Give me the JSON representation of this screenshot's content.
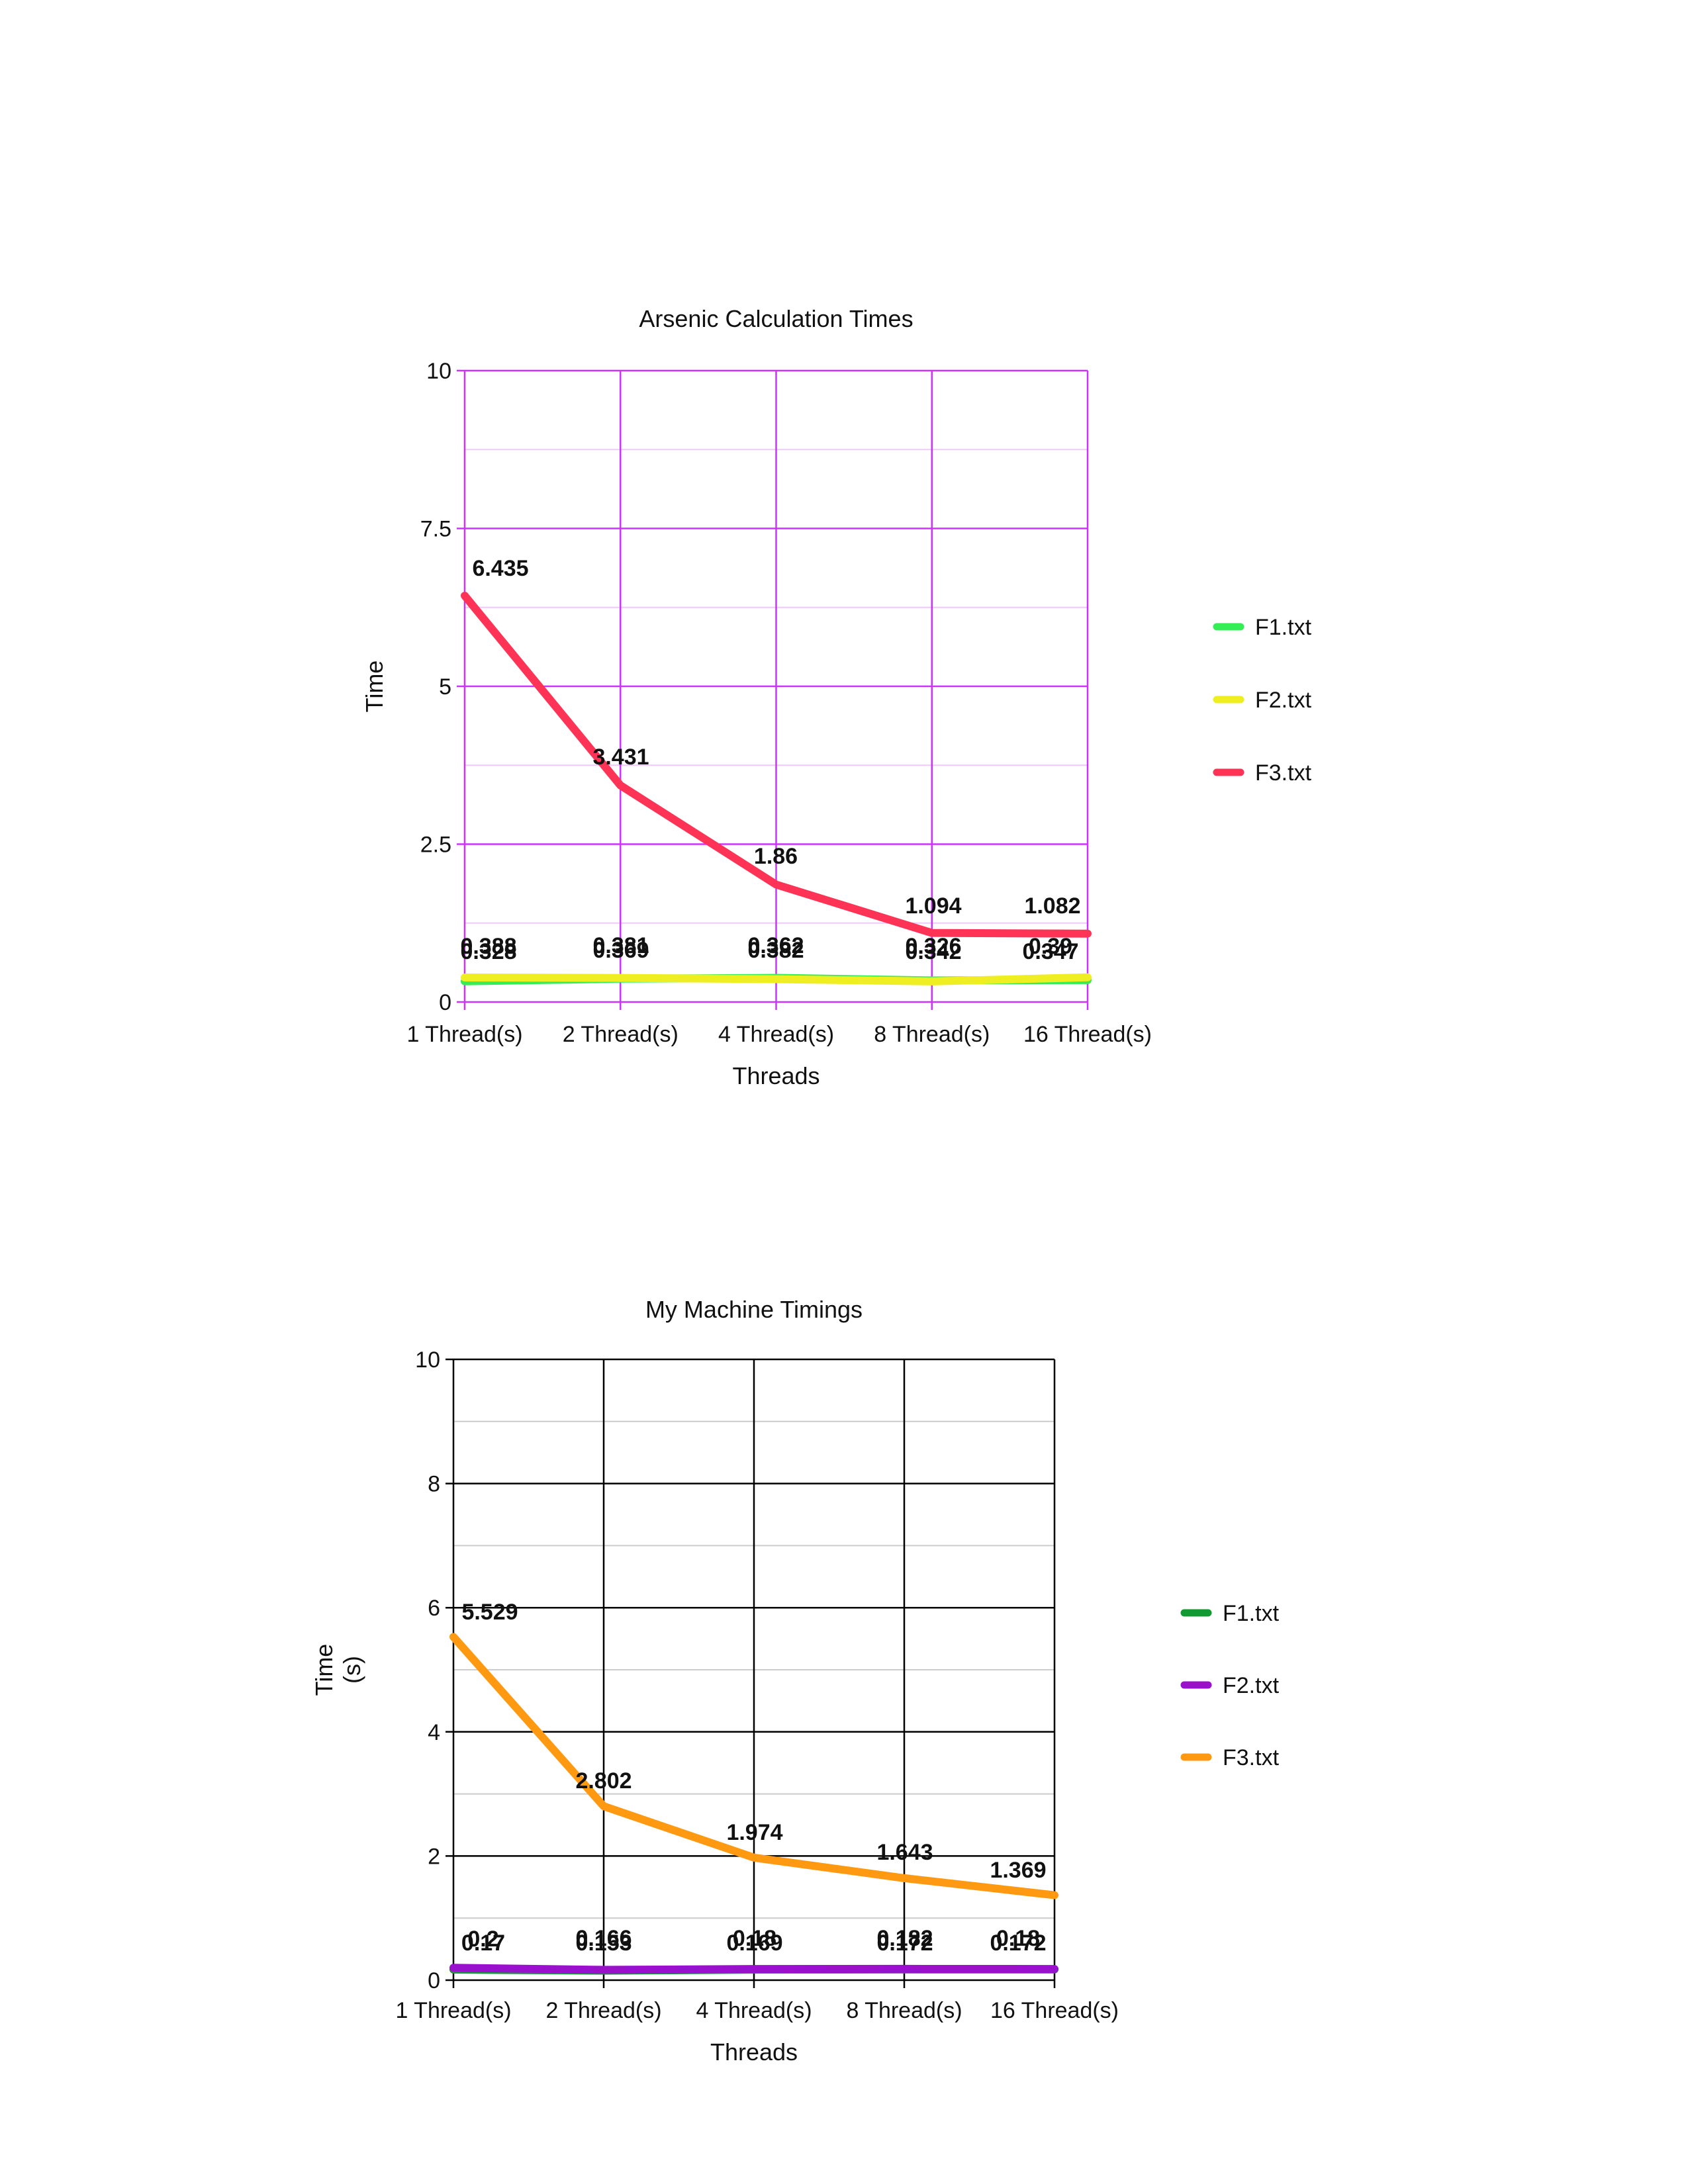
{
  "chart_data": [
    {
      "type": "line",
      "title": "Arsenic Calculation Times",
      "xlabel": "Threads",
      "ylabel": [
        "Time"
      ],
      "categories": [
        "1 Thread(s)",
        "2 Thread(s)",
        "4 Thread(s)",
        "8 Thread(s)",
        "16 Thread(s)"
      ],
      "ylim": [
        0,
        10
      ],
      "yticks": [
        "0",
        "2.5",
        "5",
        "7.5",
        "10"
      ],
      "grid": true,
      "legend_position": "right",
      "colors": {
        "grid": "#cc33ff",
        "minor_grid": "#f0c8ff"
      },
      "series": [
        {
          "name": "F1.txt",
          "color": "#33ee55",
          "values": [
            0.328,
            0.369,
            0.382,
            0.342,
            0.347
          ],
          "labels": [
            "0.328",
            "0.369",
            "0.382",
            "0.342",
            "0.347"
          ]
        },
        {
          "name": "F2.txt",
          "color": "#eeee22",
          "values": [
            0.388,
            0.381,
            0.362,
            0.326,
            0.39
          ],
          "labels": [
            "0.388",
            "0.381",
            "0.362",
            "0.326",
            "0.39"
          ]
        },
        {
          "name": "F3.txt",
          "color": "#ff3355",
          "values": [
            6.435,
            3.431,
            1.86,
            1.094,
            1.082
          ],
          "labels": [
            "6.435",
            "3.431",
            "1.86",
            "1.094",
            "1.082"
          ]
        }
      ]
    },
    {
      "type": "line",
      "title": "My Machine Timings",
      "xlabel": "Threads",
      "ylabel": [
        "Time",
        "(s)"
      ],
      "categories": [
        "1 Thread(s)",
        "2 Thread(s)",
        "4 Thread(s)",
        "8 Thread(s)",
        "16 Thread(s)"
      ],
      "ylim": [
        0,
        10
      ],
      "yticks": [
        "0",
        "2",
        "4",
        "6",
        "8",
        "10"
      ],
      "grid": true,
      "legend_position": "right",
      "colors": {
        "grid": "#000000",
        "minor_grid": "#cccccc"
      },
      "series": [
        {
          "name": "F1.txt",
          "color": "#119933",
          "values": [
            0.17,
            0.153,
            0.169,
            0.172,
            0.172
          ],
          "labels": [
            "0.17",
            "0.153",
            "0.169",
            "0.172",
            "0.172"
          ]
        },
        {
          "name": "F2.txt",
          "color": "#9911cc",
          "values": [
            0.2,
            0.166,
            0.18,
            0.182,
            0.18
          ],
          "labels": [
            "0.2",
            "0.166",
            "0.18",
            "0.182",
            "0.18"
          ]
        },
        {
          "name": "F3.txt",
          "color": "#ff9911",
          "values": [
            5.529,
            2.802,
            1.974,
            1.643,
            1.369
          ],
          "labels": [
            "5.529",
            "2.802",
            "1.974",
            "1.643",
            "1.369"
          ]
        }
      ]
    }
  ]
}
